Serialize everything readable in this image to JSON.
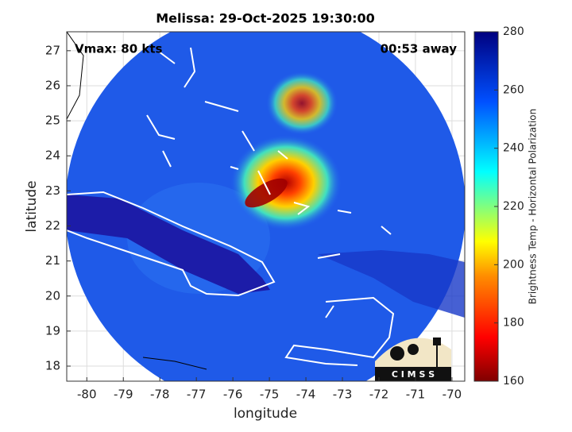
{
  "chart_data": {
    "type": "map",
    "title": "Melissa: 29-Oct-2025 19:30:00",
    "annotations": [
      "Vmax: 80 kts",
      "00:53 away"
    ],
    "xlabel": "longitude",
    "ylabel": "latitude",
    "xlim": [
      -80.55,
      -69.65
    ],
    "xticks": [
      -80,
      -79,
      -78,
      -77,
      -76,
      -75,
      -74,
      -73,
      -72,
      -71,
      -70
    ],
    "ylim": [
      17.57,
      27.54
    ],
    "yticks": [
      18,
      19,
      20,
      21,
      22,
      23,
      24,
      25,
      26,
      27
    ],
    "grid": true,
    "colorbar": {
      "label": "Brightness Temp - Horizontal Polarization",
      "lim": [
        160,
        280
      ],
      "ticks": [
        160,
        180,
        200,
        220,
        240,
        260,
        280
      ]
    },
    "logo": "C I M S S"
  }
}
